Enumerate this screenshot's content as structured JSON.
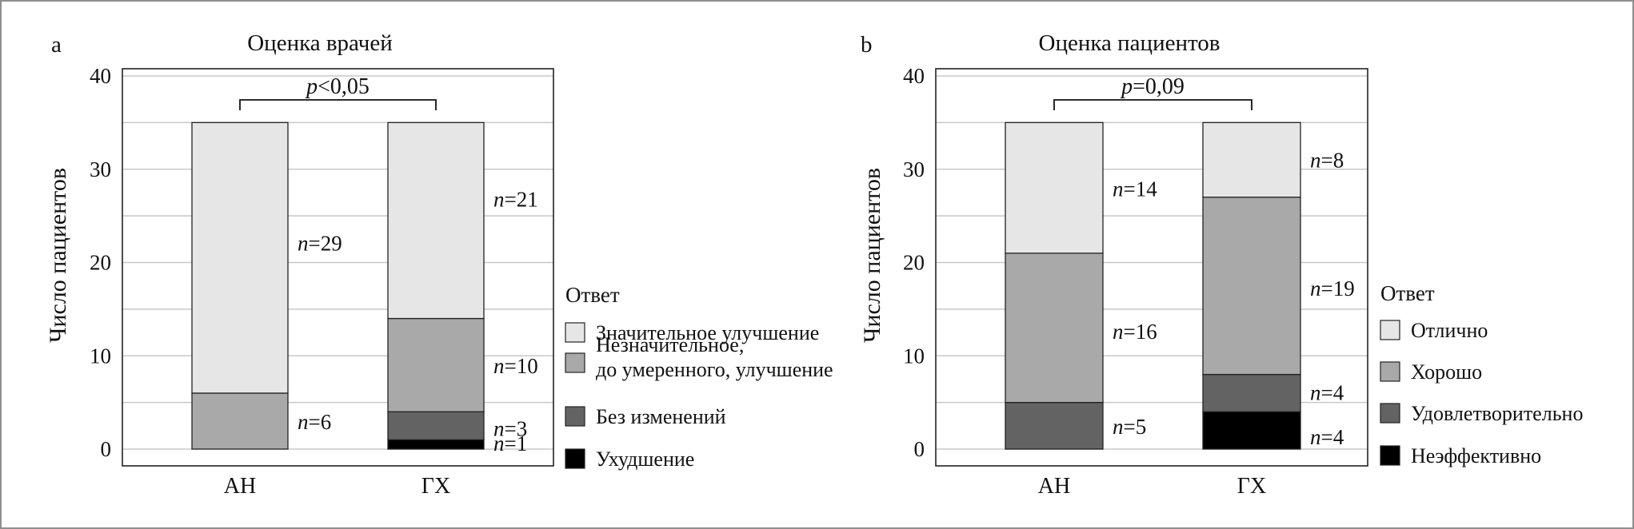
{
  "figure": {
    "colors": {
      "frame": "#8f8f8f",
      "grid": "#c8c8c8",
      "light": "#e6e6e6",
      "medium": "#a9a9a9",
      "dark": "#636363",
      "black": "#000000"
    }
  },
  "chart_data": [
    {
      "panel_letter": "a",
      "type": "bar",
      "stacked": true,
      "title": "Оценка врачей",
      "ylabel": "Число пациентов",
      "xlabel": "",
      "ylim": [
        0,
        40
      ],
      "yticks": [
        0,
        10,
        20,
        30,
        40
      ],
      "grid": true,
      "categories": [
        "АН",
        "ГХ"
      ],
      "legend_title": "Ответ",
      "legend_position": "right",
      "series": [
        {
          "name": "Ухудшение",
          "color": "#000000",
          "values": [
            0,
            1
          ],
          "labels": [
            "",
            "n=1"
          ]
        },
        {
          "name": "Без изменений",
          "color": "#636363",
          "values": [
            0,
            3
          ],
          "labels": [
            "",
            "n=3"
          ]
        },
        {
          "name": "Незначительное, до умеренного, улучшение",
          "name_lines": [
            "Незначительное,",
            "до умеренного, улучшение"
          ],
          "color": "#a9a9a9",
          "values": [
            6,
            10
          ],
          "labels": [
            "n=6",
            "n=10"
          ]
        },
        {
          "name": "Значительное улучшение",
          "color": "#e6e6e6",
          "values": [
            29,
            21
          ],
          "labels": [
            "n=29",
            "n=21"
          ]
        }
      ],
      "annotation": {
        "text_prefix": "p",
        "text_suffix": "<0,05",
        "from": 0,
        "to": 1
      }
    },
    {
      "panel_letter": "b",
      "type": "bar",
      "stacked": true,
      "title": "Оценка пациентов",
      "ylabel": "Число пациентов",
      "xlabel": "",
      "ylim": [
        0,
        40
      ],
      "yticks": [
        0,
        10,
        20,
        30,
        40
      ],
      "grid": true,
      "categories": [
        "АН",
        "ГХ"
      ],
      "legend_title": "Ответ",
      "legend_position": "right",
      "series": [
        {
          "name": "Неэффективно",
          "color": "#000000",
          "values": [
            0,
            4
          ],
          "labels": [
            "",
            "n=4"
          ]
        },
        {
          "name": "Удовлетворительно",
          "color": "#636363",
          "values": [
            5,
            4
          ],
          "labels": [
            "n=5",
            "n=4"
          ]
        },
        {
          "name": "Хорошо",
          "color": "#a9a9a9",
          "values": [
            16,
            19
          ],
          "labels": [
            "n=16",
            "n=19"
          ]
        },
        {
          "name": "Отлично",
          "color": "#e6e6e6",
          "values": [
            14,
            8
          ],
          "labels": [
            "n=14",
            "n=8"
          ]
        }
      ],
      "annotation": {
        "text_prefix": "p",
        "text_suffix": "=0,09",
        "from": 0,
        "to": 1
      }
    }
  ]
}
